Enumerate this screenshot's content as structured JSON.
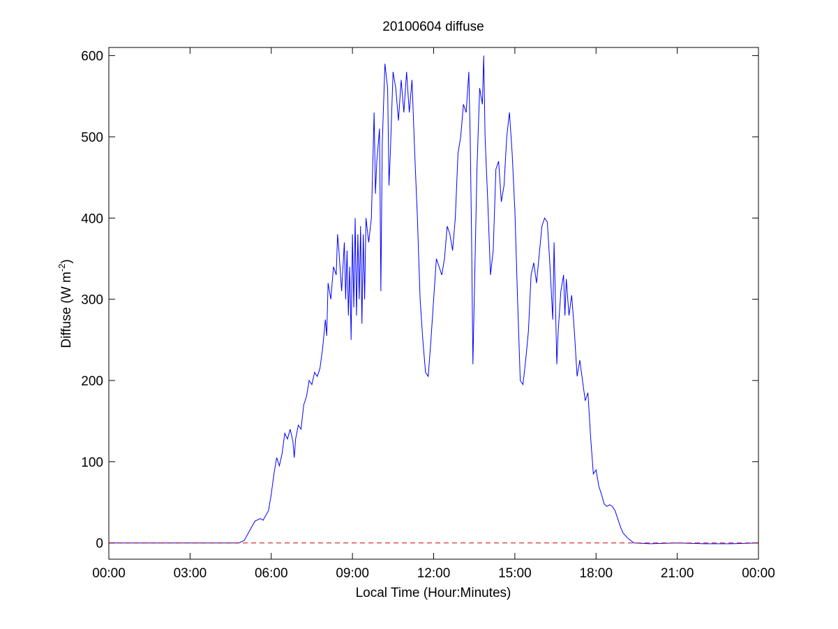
{
  "chart_data": {
    "type": "line",
    "title": "20100604 diffuse",
    "xlabel": "Local Time (Hour:Minutes)",
    "ylabel": {
      "text": "Diffuse (W m",
      "sup": "-2",
      "end": ")"
    },
    "xlim": [
      0,
      24
    ],
    "ylim": [
      -20,
      610
    ],
    "xticks": [
      {
        "value": 0,
        "label": "00:00"
      },
      {
        "value": 3,
        "label": "03:00"
      },
      {
        "value": 6,
        "label": "06:00"
      },
      {
        "value": 9,
        "label": "09:00"
      },
      {
        "value": 12,
        "label": "12:00"
      },
      {
        "value": 15,
        "label": "15:00"
      },
      {
        "value": 18,
        "label": "18:00"
      },
      {
        "value": 21,
        "label": "21:00"
      },
      {
        "value": 24,
        "label": "00:00"
      }
    ],
    "yticks": [
      0,
      100,
      200,
      300,
      400,
      500,
      600
    ],
    "grid": false,
    "reference_line": {
      "value": 0,
      "color": "#cc0000",
      "style": "dashed"
    },
    "x": [
      0,
      4.8,
      5.0,
      5.2,
      5.4,
      5.6,
      5.7,
      5.9,
      6.0,
      6.1,
      6.2,
      6.3,
      6.4,
      6.5,
      6.6,
      6.7,
      6.8,
      6.85,
      6.9,
      7.0,
      7.1,
      7.2,
      7.3,
      7.4,
      7.5,
      7.6,
      7.7,
      7.8,
      7.9,
      8.0,
      8.05,
      8.1,
      8.2,
      8.3,
      8.4,
      8.45,
      8.5,
      8.6,
      8.7,
      8.75,
      8.8,
      8.85,
      8.9,
      8.95,
      9.0,
      9.05,
      9.1,
      9.15,
      9.2,
      9.25,
      9.3,
      9.35,
      9.4,
      9.45,
      9.5,
      9.6,
      9.7,
      9.8,
      9.85,
      9.9,
      10.0,
      10.05,
      10.1,
      10.2,
      10.3,
      10.35,
      10.4,
      10.5,
      10.6,
      10.7,
      10.8,
      10.9,
      11.0,
      11.1,
      11.2,
      11.3,
      11.4,
      11.5,
      11.6,
      11.7,
      11.8,
      11.9,
      12.0,
      12.1,
      12.2,
      12.3,
      12.4,
      12.5,
      12.6,
      12.7,
      12.8,
      12.9,
      13.0,
      13.1,
      13.2,
      13.3,
      13.35,
      13.4,
      13.45,
      13.5,
      13.6,
      13.7,
      13.8,
      13.85,
      13.9,
      14.0,
      14.1,
      14.2,
      14.3,
      14.4,
      14.5,
      14.6,
      14.7,
      14.8,
      14.9,
      15.0,
      15.1,
      15.2,
      15.3,
      15.4,
      15.5,
      15.6,
      15.7,
      15.8,
      15.9,
      16.0,
      16.1,
      16.2,
      16.3,
      16.4,
      16.45,
      16.55,
      16.6,
      16.7,
      16.8,
      16.85,
      16.9,
      17.0,
      17.1,
      17.2,
      17.3,
      17.4,
      17.5,
      17.6,
      17.7,
      17.8,
      17.9,
      18.0,
      18.1,
      18.2,
      18.3,
      18.4,
      18.5,
      18.6,
      18.7,
      18.8,
      18.9,
      19.0,
      19.2,
      19.4,
      20.0,
      21.0,
      22.0,
      23.0,
      24.0
    ],
    "series": [
      {
        "name": "diffuse",
        "color": "#0000ff",
        "values": [
          0,
          0,
          3,
          15,
          27,
          30,
          28,
          40,
          60,
          85,
          105,
          95,
          110,
          135,
          128,
          140,
          125,
          105,
          128,
          145,
          140,
          170,
          180,
          200,
          195,
          210,
          205,
          215,
          240,
          275,
          255,
          320,
          300,
          340,
          330,
          380,
          360,
          310,
          370,
          300,
          360,
          280,
          340,
          250,
          380,
          290,
          400,
          280,
          380,
          300,
          390,
          270,
          380,
          300,
          400,
          370,
          400,
          530,
          430,
          470,
          510,
          310,
          490,
          590,
          560,
          440,
          480,
          580,
          560,
          520,
          570,
          530,
          580,
          530,
          570,
          480,
          400,
          300,
          250,
          210,
          205,
          250,
          300,
          350,
          340,
          330,
          350,
          390,
          380,
          360,
          400,
          480,
          500,
          540,
          530,
          580,
          500,
          380,
          220,
          300,
          460,
          560,
          540,
          600,
          500,
          420,
          330,
          360,
          460,
          470,
          420,
          440,
          500,
          530,
          480,
          410,
          300,
          200,
          195,
          225,
          260,
          330,
          345,
          320,
          355,
          390,
          400,
          395,
          340,
          275,
          370,
          220,
          260,
          310,
          330,
          280,
          325,
          280,
          305,
          260,
          205,
          225,
          200,
          175,
          185,
          130,
          85,
          90,
          70,
          60,
          48,
          45,
          47,
          45,
          40,
          30,
          20,
          12,
          5,
          0,
          -1,
          0,
          -1,
          -1,
          0
        ]
      }
    ]
  }
}
